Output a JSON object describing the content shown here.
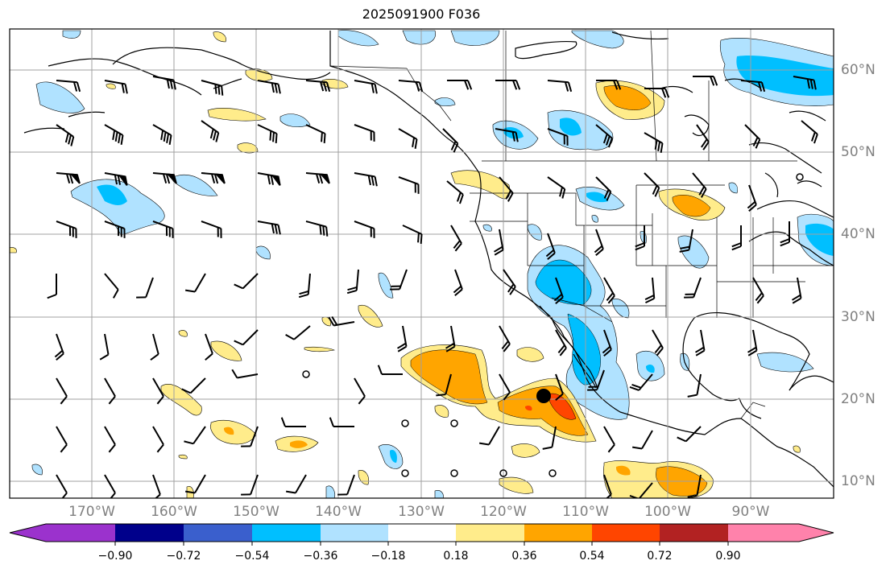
{
  "title": "2025091900 F036",
  "map": {
    "lon_ticks": [
      "170°W",
      "160°W",
      "150°W",
      "140°W",
      "130°W",
      "120°W",
      "110°W",
      "100°W",
      "90°W"
    ],
    "lat_ticks": [
      "60°N",
      "50°N",
      "40°N",
      "30°N",
      "20°N",
      "10°N"
    ],
    "gridlines": true,
    "storm_marker": "filled-circle"
  },
  "colorbar": {
    "orientation": "horizontal",
    "extend": "both",
    "colors": [
      "#9b32cd",
      "#00008b",
      "#3a5fcd",
      "#00bfff",
      "#b0e2ff",
      "#ffffff",
      "#ffec8b",
      "#ffa500",
      "#ff4500",
      "#b22222",
      "#ff82ab"
    ],
    "tick_labels": [
      "−0.90",
      "−0.72",
      "−0.54",
      "−0.36",
      "−0.18",
      "0.18",
      "0.36",
      "0.54",
      "0.72",
      "0.90"
    ]
  }
}
